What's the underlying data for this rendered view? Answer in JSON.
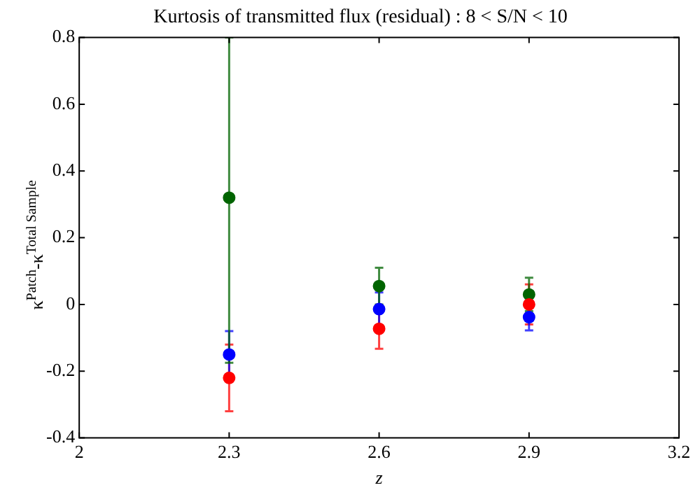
{
  "chart_data": {
    "type": "scatter",
    "title": "Kurtosis of transmitted flux (residual) : 8 < S/N < 10",
    "xlabel": "z",
    "ylabel": "κ$^{Patch}$-κ$^{Total Sample}$",
    "xlim": [
      2,
      3.2
    ],
    "xticks": [
      2,
      2.3,
      2.6,
      2.9,
      3.2
    ],
    "ylim": [
      -0.4,
      0.8
    ],
    "yticks": [
      -0.4,
      -0.2,
      0,
      0.2,
      0.4,
      0.6,
      0.8
    ],
    "grid": false,
    "legend": false,
    "marker": "circle",
    "series": [
      {
        "color": "#ff0000",
        "x": [
          2.3,
          2.6,
          2.9
        ],
        "values": [
          -0.22,
          -0.073,
          0.0
        ],
        "errors": [
          0.1,
          0.06,
          0.06
        ]
      },
      {
        "color": "#0000ff",
        "x": [
          2.3,
          2.6,
          2.9
        ],
        "values": [
          -0.15,
          -0.014,
          -0.038
        ],
        "errors": [
          0.07,
          0.05,
          0.04
        ]
      },
      {
        "color": "#006400",
        "x": [
          2.3,
          2.6,
          2.9
        ],
        "values": [
          0.32,
          0.055,
          0.03
        ],
        "errors": [
          [
            -0.175,
            0.8
          ],
          0.055,
          0.05
        ]
      }
    ]
  }
}
